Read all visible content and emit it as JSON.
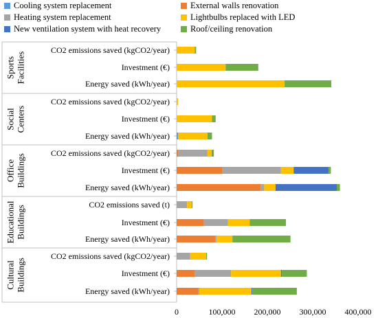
{
  "chart_data": {
    "type": "bar",
    "orientation": "horizontal",
    "stacked": true,
    "legend_position": "top",
    "grid": false,
    "xlim": [
      0,
      400000
    ],
    "x_ticks": [
      "0",
      "100,000",
      "200,000",
      "300,000",
      "400,000"
    ],
    "x_tick_values": [
      0,
      100000,
      200000,
      300000,
      400000
    ],
    "series": [
      {
        "name": "Cooling system replacement",
        "color": "#5b9bd5"
      },
      {
        "name": "External walls renovation",
        "color": "#ed7d31"
      },
      {
        "name": "Heating system replacement",
        "color": "#a5a5a5"
      },
      {
        "name": "Lightbulbs replaced with LED",
        "color": "#ffc000"
      },
      {
        "name": "New ventilation system with heat recovery",
        "color": "#4472c4"
      },
      {
        "name": "Roof/ceiling renovation",
        "color": "#70ad47"
      }
    ],
    "groups": [
      {
        "name": "Sports Facilities",
        "rows": [
          {
            "label": "CO2 emissions saved (kgCO2/year)",
            "values": [
              0,
              0,
              0,
              40000,
              0,
              3000
            ]
          },
          {
            "label": "Investment (€)",
            "values": [
              0,
              0,
              0,
              108000,
              0,
              72000
            ]
          },
          {
            "label": "Energy saved (kWh/year)",
            "values": [
              0,
              0,
              0,
              238000,
              0,
              103000
            ]
          }
        ]
      },
      {
        "name": "Social Centers",
        "rows": [
          {
            "label": "CO2 emissions saved (kgCO2/year)",
            "values": [
              0,
              0,
              0,
              3000,
              0,
              0
            ]
          },
          {
            "label": "Investment (€)",
            "values": [
              0,
              0,
              0,
              78000,
              0,
              8000
            ]
          },
          {
            "label": "Energy saved (kWh/year)",
            "values": [
              3000,
              0,
              0,
              65000,
              0,
              10000
            ]
          }
        ]
      },
      {
        "name": "Office Buildings",
        "rows": [
          {
            "label": "CO2 emissions saved (kgCO2/year)",
            "values": [
              0,
              3000,
              65000,
              10000,
              2000,
              2000
            ]
          },
          {
            "label": "Investment (€)",
            "values": [
              0,
              100000,
              130000,
              28000,
              77000,
              5000
            ]
          },
          {
            "label": "Energy saved (kWh/year)",
            "values": [
              0,
              185000,
              8000,
              25000,
              135000,
              7000
            ]
          }
        ]
      },
      {
        "name": "Educational Buildings",
        "rows": [
          {
            "label": "CO2 emissions saved (t)",
            "values": [
              0,
              0,
              23000,
              10000,
              0,
              2000
            ]
          },
          {
            "label": "Investment (€)",
            "values": [
              0,
              60000,
              53000,
              48000,
              0,
              80000
            ]
          },
          {
            "label": "Energy saved (kWh/year)",
            "values": [
              0,
              85000,
              3000,
              35000,
              0,
              128000
            ]
          }
        ]
      },
      {
        "name": "Cultural Buildings",
        "rows": [
          {
            "label": "CO2 emissions saved (kgCO2/year)",
            "values": [
              0,
              0,
              30000,
              35000,
              0,
              2000
            ]
          },
          {
            "label": "Investment (€)",
            "values": [
              0,
              40000,
              80000,
              110000,
              2000,
              55000
            ]
          },
          {
            "label": "Energy saved (kWh/year)",
            "values": [
              0,
              48000,
              2000,
              115000,
              2000,
              98000
            ]
          }
        ]
      }
    ]
  }
}
